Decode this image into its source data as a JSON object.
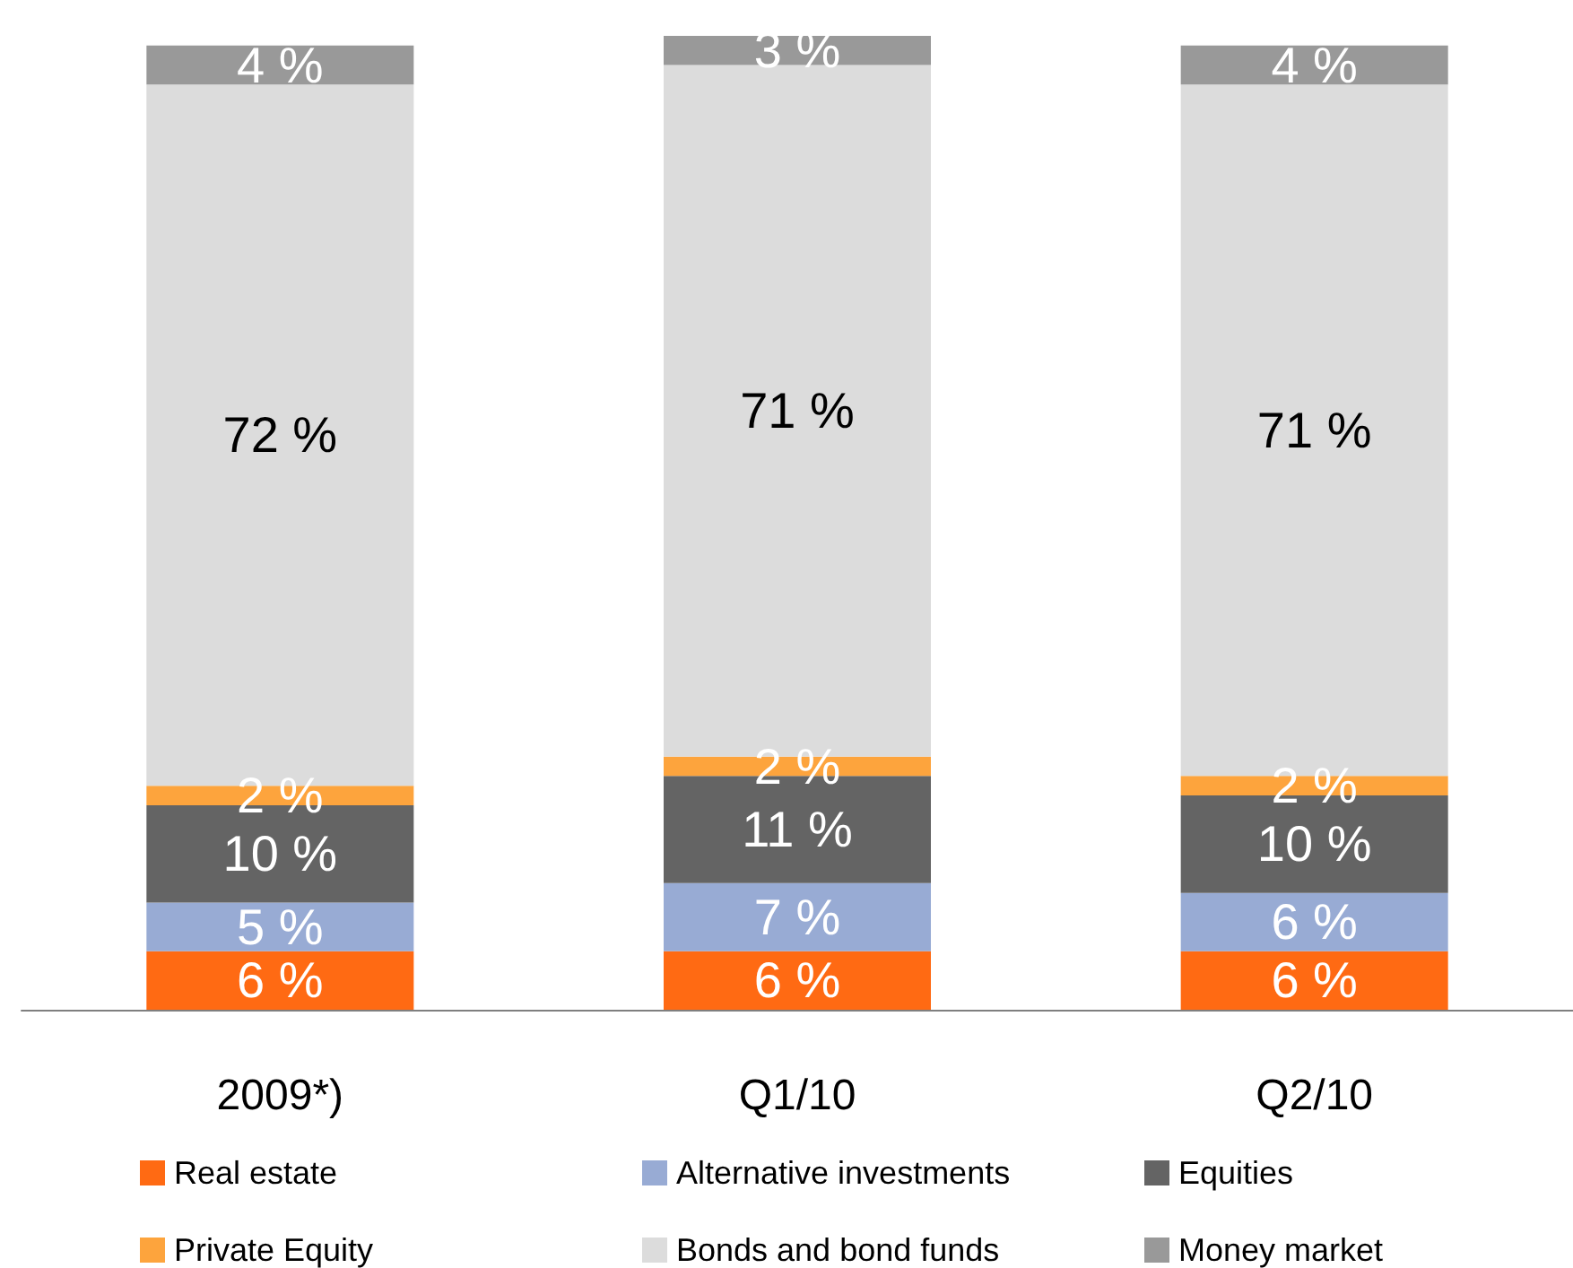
{
  "chart_data": {
    "type": "bar",
    "stacked": true,
    "legend": "bottom",
    "categories": [
      "2009*)",
      "Q1/10",
      "Q2/10"
    ],
    "series": [
      {
        "name": "Real estate",
        "color": "#ff6a13",
        "values": [
          6,
          6,
          6
        ],
        "value_labels": [
          "6 %",
          "6 %",
          "6 %"
        ]
      },
      {
        "name": "Alternative investments",
        "color": "#98abd4",
        "values": [
          5,
          7,
          6
        ],
        "value_labels": [
          "5 %",
          "7 %",
          "6 %"
        ]
      },
      {
        "name": "Equities",
        "color": "#646464",
        "values": [
          10,
          11,
          10
        ],
        "value_labels": [
          "10 %",
          "11 %",
          "10 %"
        ]
      },
      {
        "name": "Private Equity",
        "color": "#fda43d",
        "values": [
          2,
          2,
          2
        ],
        "value_labels": [
          "2 %",
          "2 %",
          "2 %"
        ]
      },
      {
        "name": "Bonds and bond funds",
        "color": "#dcdcdc",
        "values": [
          72,
          71,
          71
        ],
        "value_labels": [
          "72 %",
          "71 %",
          "71 %"
        ]
      },
      {
        "name": "Money market",
        "color": "#999999",
        "values": [
          4,
          3,
          4
        ],
        "value_labels": [
          "4 %",
          "3 %",
          "4 %"
        ]
      }
    ]
  }
}
